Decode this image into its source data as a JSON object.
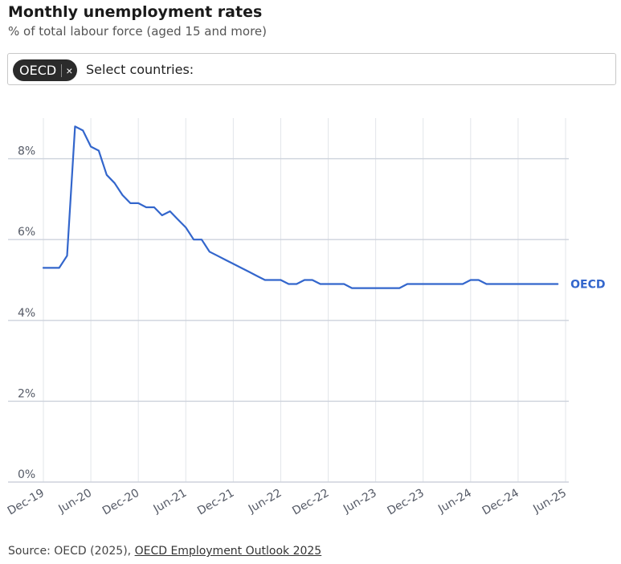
{
  "title": "Monthly unemployment rates",
  "subtitle": "% of total labour force (aged 15 and more)",
  "selector": {
    "chip_label": "OECD",
    "chip_close": "×",
    "placeholder": "Select countries:"
  },
  "source": {
    "prefix": "Source: OECD (2025), ",
    "link_text": "OECD Employment Outlook 2025"
  },
  "colors": {
    "series": "#3366cc",
    "grid": "#cdd2dc",
    "axis_text": "#555a66"
  },
  "chart_data": {
    "type": "line",
    "title": "Monthly unemployment rates",
    "subtitle": "% of total labour force (aged 15 and more)",
    "xlabel": "",
    "ylabel": "",
    "ylim": [
      0,
      9
    ],
    "yticks": [
      0,
      2,
      4,
      6,
      8
    ],
    "ytick_labels": [
      "0%",
      "2%",
      "4%",
      "6%",
      "8%"
    ],
    "xticks": [
      "2019-12",
      "2020-06",
      "2020-12",
      "2021-06",
      "2021-12",
      "2022-06",
      "2022-12",
      "2023-06",
      "2023-12",
      "2024-06",
      "2024-12",
      "2025-06"
    ],
    "xtick_labels": [
      "Dec-19",
      "Jun-20",
      "Dec-20",
      "Jun-21",
      "Dec-21",
      "Jun-22",
      "Dec-22",
      "Jun-23",
      "Dec-23",
      "Jun-24",
      "Dec-24",
      "Jun-25"
    ],
    "grid": true,
    "legend": "end-of-line label",
    "series": [
      {
        "name": "OECD",
        "x": [
          "2019-12",
          "2020-01",
          "2020-02",
          "2020-03",
          "2020-04",
          "2020-05",
          "2020-06",
          "2020-07",
          "2020-08",
          "2020-09",
          "2020-10",
          "2020-11",
          "2020-12",
          "2021-01",
          "2021-02",
          "2021-03",
          "2021-04",
          "2021-05",
          "2021-06",
          "2021-07",
          "2021-08",
          "2021-09",
          "2021-10",
          "2021-11",
          "2021-12",
          "2022-01",
          "2022-02",
          "2022-03",
          "2022-04",
          "2022-05",
          "2022-06",
          "2022-07",
          "2022-08",
          "2022-09",
          "2022-10",
          "2022-11",
          "2022-12",
          "2023-01",
          "2023-02",
          "2023-03",
          "2023-04",
          "2023-05",
          "2023-06",
          "2023-07",
          "2023-08",
          "2023-09",
          "2023-10",
          "2023-11",
          "2023-12",
          "2024-01",
          "2024-02",
          "2024-03",
          "2024-04",
          "2024-05",
          "2024-06",
          "2024-07",
          "2024-08",
          "2024-09",
          "2024-10",
          "2024-11",
          "2024-12",
          "2025-01",
          "2025-02",
          "2025-03",
          "2025-04",
          "2025-05"
        ],
        "values": [
          5.3,
          5.3,
          5.3,
          5.6,
          8.8,
          8.7,
          8.3,
          8.2,
          7.6,
          7.4,
          7.1,
          6.9,
          6.9,
          6.8,
          6.8,
          6.6,
          6.7,
          6.5,
          6.3,
          6.0,
          6.0,
          5.7,
          5.6,
          5.5,
          5.4,
          5.3,
          5.2,
          5.1,
          5.0,
          5.0,
          5.0,
          4.9,
          4.9,
          5.0,
          5.0,
          4.9,
          4.9,
          4.9,
          4.9,
          4.8,
          4.8,
          4.8,
          4.8,
          4.8,
          4.8,
          4.8,
          4.9,
          4.9,
          4.9,
          4.9,
          4.9,
          4.9,
          4.9,
          4.9,
          5.0,
          5.0,
          4.9,
          4.9,
          4.9,
          4.9,
          4.9,
          4.9,
          4.9,
          4.9,
          4.9,
          4.9
        ]
      }
    ]
  }
}
